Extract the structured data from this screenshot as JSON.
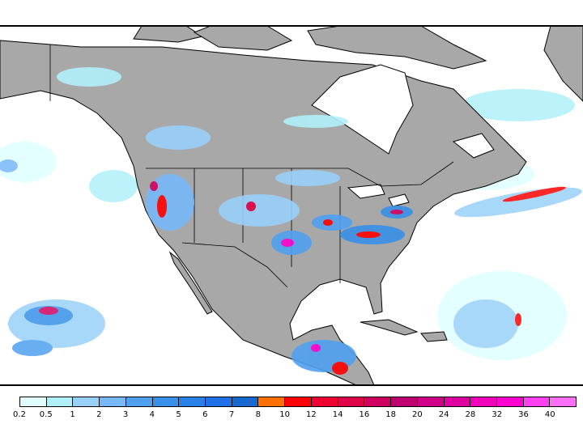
{
  "colorbar": {
    "labels": [
      "0.2",
      "0.5",
      "1",
      "2",
      "3",
      "4",
      "5",
      "6",
      "7",
      "8",
      "10",
      "12",
      "14",
      "16",
      "18",
      "20",
      "24",
      "28",
      "32",
      "36",
      "40"
    ],
    "colors": [
      "#e0ffff",
      "#b0f0f8",
      "#98d0f8",
      "#78b8f8",
      "#50a0f0",
      "#3890e8",
      "#2880e8",
      "#2070e8",
      "#1868d0",
      "#ff7000",
      "#ff0000",
      "#f00030",
      "#e00048",
      "#d00060",
      "#c00070",
      "#d00088",
      "#e000a0",
      "#f000b8",
      "#ff00d0",
      "#ff40f0",
      "#ff70f8"
    ]
  },
  "map": {
    "land_color": "#a8a8a8",
    "ocean_color": "#ffffff"
  }
}
